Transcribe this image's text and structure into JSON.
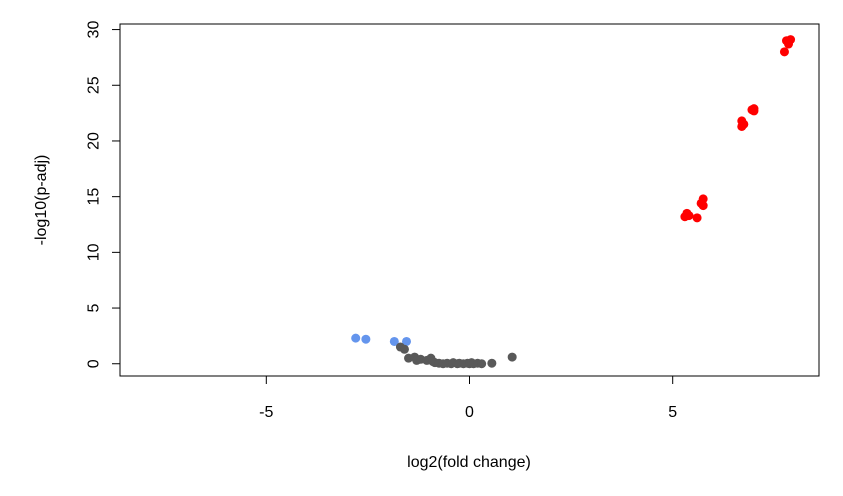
{
  "chart_data": {
    "type": "scatter",
    "title": "",
    "xlabel": "log2(fold change)",
    "ylabel": "-log10(p-adj)",
    "xlim": [
      -8.6,
      8.6
    ],
    "ylim": [
      -1.1,
      30.5
    ],
    "xticks": [
      -5,
      0,
      5
    ],
    "xtick_labels": [
      "-5",
      "0",
      "5"
    ],
    "yticks": [
      0,
      5,
      10,
      15,
      20,
      25,
      30
    ],
    "ytick_labels": [
      "0",
      "5",
      "10",
      "15",
      "20",
      "25",
      "30"
    ],
    "grid": false,
    "legend": "none",
    "series": [
      {
        "color": "#ff0000",
        "points": [
          [
            7.8,
            29.0
          ],
          [
            7.85,
            28.7
          ],
          [
            7.9,
            29.1
          ],
          [
            7.75,
            28.0
          ],
          [
            7.0,
            22.9
          ],
          [
            6.95,
            22.8
          ],
          [
            7.0,
            22.7
          ],
          [
            6.7,
            21.8
          ],
          [
            6.75,
            21.5
          ],
          [
            6.7,
            21.3
          ],
          [
            5.75,
            14.8
          ],
          [
            5.7,
            14.4
          ],
          [
            5.75,
            14.2
          ],
          [
            5.35,
            13.5
          ],
          [
            5.3,
            13.2
          ],
          [
            5.4,
            13.3
          ],
          [
            5.6,
            13.1
          ]
        ]
      },
      {
        "color": "#6495ed",
        "points": [
          [
            -2.8,
            2.3
          ],
          [
            -2.55,
            2.2
          ],
          [
            -1.85,
            2.0
          ],
          [
            -1.55,
            2.0
          ]
        ]
      },
      {
        "color": "#595959",
        "points": [
          [
            -1.7,
            1.5
          ],
          [
            -1.6,
            1.3
          ],
          [
            -1.5,
            0.5
          ],
          [
            -1.35,
            0.6
          ],
          [
            -1.3,
            0.3
          ],
          [
            -1.2,
            0.4
          ],
          [
            -1.05,
            0.3
          ],
          [
            -0.95,
            0.5
          ],
          [
            -0.9,
            0.2
          ],
          [
            -0.85,
            0.1
          ],
          [
            -0.75,
            0.05
          ],
          [
            -0.65,
            0.0
          ],
          [
            -0.55,
            0.05
          ],
          [
            -0.45,
            0.0
          ],
          [
            -0.4,
            0.1
          ],
          [
            -0.3,
            0.0
          ],
          [
            -0.25,
            0.05
          ],
          [
            -0.15,
            0.0
          ],
          [
            -0.05,
            0.05
          ],
          [
            0.0,
            0.0
          ],
          [
            0.05,
            0.1
          ],
          [
            0.1,
            0.0
          ],
          [
            0.2,
            0.05
          ],
          [
            0.3,
            0.0
          ],
          [
            0.55,
            0.05
          ],
          [
            1.05,
            0.6
          ]
        ]
      }
    ]
  }
}
